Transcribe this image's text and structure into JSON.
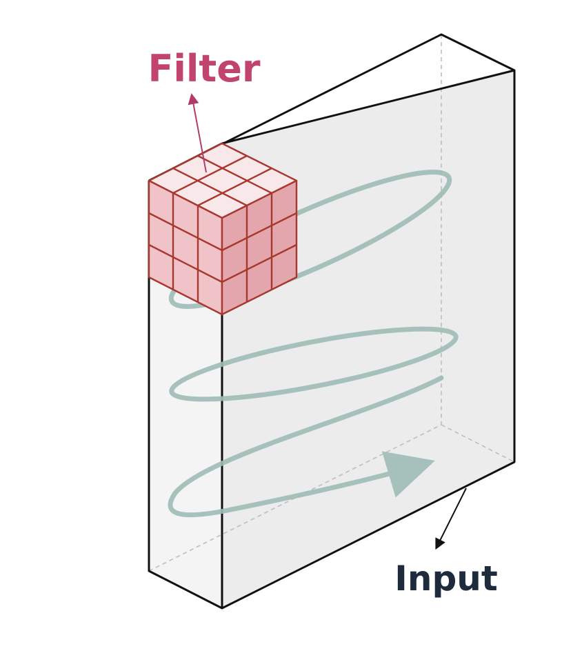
{
  "labels": {
    "filter": "Filter",
    "input": "Input"
  },
  "colors": {
    "filter_label": "#c0446e",
    "filter_stroke": "#a8382f",
    "filter_face_top": "#f9e8ea",
    "filter_face_front": "#efc3c7",
    "filter_face_side": "#e2a6ac",
    "input_label": "#1e2b3c",
    "input_front": "#ececec",
    "input_side": "#f4f4f4",
    "input_edge": "#111111",
    "spiral": "#9fbdb6",
    "arrow_filter": "#b13a68",
    "arrow_input": "#111111"
  },
  "icons": {
    "filter_pointer": "arrow-up-icon",
    "input_pointer": "arrow-down-left-icon",
    "scan_path_end": "arrow-head-icon"
  }
}
